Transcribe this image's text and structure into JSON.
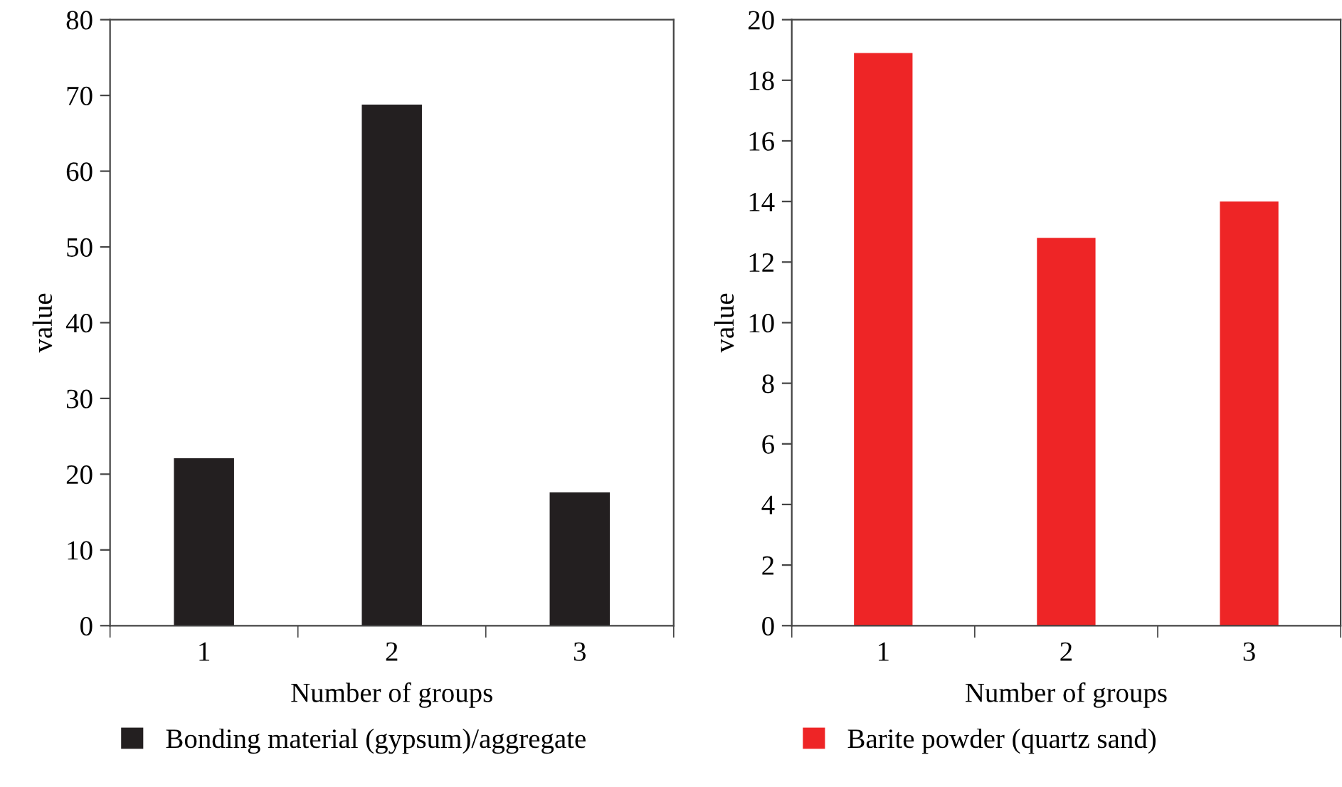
{
  "chart_data": [
    {
      "type": "bar",
      "xlabel": "Number of groups",
      "ylabel": "value",
      "categories": [
        "1",
        "2",
        "3"
      ],
      "series": [
        {
          "name": "Bonding material (gypsum)/aggregate",
          "color": "#231f20",
          "values": [
            22.1,
            68.8,
            17.6
          ]
        }
      ],
      "ylim": [
        0,
        80
      ],
      "yticks": [
        0,
        10,
        20,
        30,
        40,
        50,
        60,
        70,
        80
      ],
      "grid": false,
      "legend": "bottom"
    },
    {
      "type": "bar",
      "xlabel": "Number of groups",
      "ylabel": "value",
      "categories": [
        "1",
        "2",
        "3"
      ],
      "series": [
        {
          "name": "Barite powder (quartz sand)",
          "color": "#ee2526",
          "values": [
            18.9,
            12.8,
            14.0
          ]
        }
      ],
      "ylim": [
        0,
        20
      ],
      "yticks": [
        0,
        2,
        4,
        6,
        8,
        10,
        12,
        14,
        16,
        18,
        20
      ],
      "grid": false,
      "legend": "bottom"
    }
  ]
}
